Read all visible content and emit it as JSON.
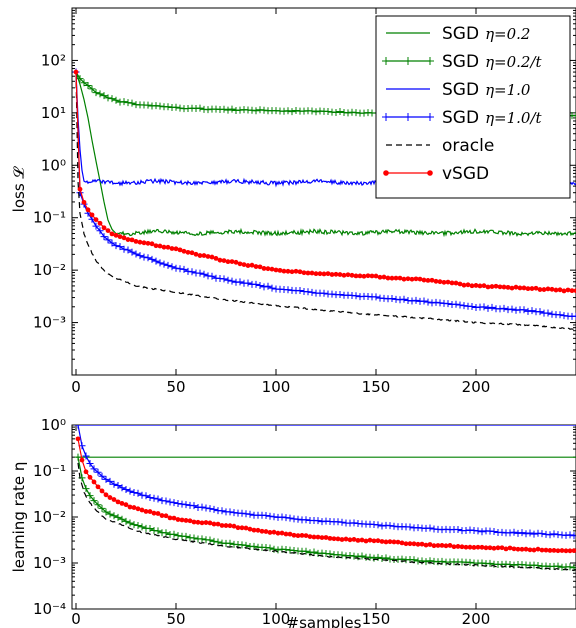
{
  "chart_data": [
    {
      "type": "line",
      "ylabel": "loss 𝓛",
      "ylog": true,
      "ylim": [
        0.0001,
        1000
      ],
      "xlim": [
        -2,
        250
      ],
      "xticks": [
        0,
        50,
        100,
        150,
        200
      ],
      "yticks": [
        {
          "value": 0.001,
          "label": "10⁻³"
        },
        {
          "value": 0.01,
          "label": "10⁻²"
        },
        {
          "value": 0.1,
          "label": "10⁻¹"
        },
        {
          "value": 1,
          "label": "10⁰"
        },
        {
          "value": 10,
          "label": "10¹"
        },
        {
          "value": 100,
          "label": "10²"
        }
      ],
      "legend": "top-right",
      "series": [
        {
          "name": "SGD η=0.2",
          "legend_prefix": "SGD",
          "legend_symbol": "η=0.2",
          "color": "#008000",
          "style": "solid",
          "marker": "none",
          "x": [
            0,
            2,
            4,
            6,
            8,
            10,
            12,
            14,
            16,
            18,
            20,
            25,
            30,
            40,
            60,
            80,
            100,
            120,
            140,
            160,
            180,
            200,
            220,
            240,
            250
          ],
          "values": [
            60,
            35,
            18,
            8,
            3,
            1.2,
            0.5,
            0.2,
            0.09,
            0.06,
            0.05,
            0.05,
            0.05,
            0.055,
            0.05,
            0.055,
            0.05,
            0.055,
            0.05,
            0.055,
            0.05,
            0.055,
            0.05,
            0.05,
            0.05
          ]
        },
        {
          "name": "SGD η=0.2/t",
          "legend_prefix": "SGD",
          "legend_symbol": "η=0.2/t",
          "color": "#008000",
          "style": "solid",
          "marker": "plus",
          "x": [
            0,
            2,
            5,
            10,
            15,
            20,
            30,
            40,
            50,
            75,
            100,
            125,
            150,
            175,
            200,
            225,
            250
          ],
          "values": [
            60,
            45,
            35,
            25,
            20,
            17,
            14.5,
            13.5,
            12.5,
            11.5,
            11,
            10.5,
            10,
            9.8,
            9.5,
            9.3,
            9
          ]
        },
        {
          "name": "SGD η=1.0",
          "legend_prefix": "SGD",
          "legend_symbol": "η=1.0",
          "color": "#0000ff",
          "style": "solid",
          "marker": "none",
          "x": [
            0,
            1,
            2,
            3,
            4,
            6,
            10,
            20,
            40,
            60,
            80,
            100,
            120,
            140,
            160,
            180,
            200,
            220,
            240,
            250
          ],
          "values": [
            60,
            8,
            2,
            0.8,
            0.5,
            0.45,
            0.5,
            0.45,
            0.5,
            0.45,
            0.5,
            0.45,
            0.5,
            0.45,
            0.5,
            0.45,
            0.5,
            0.45,
            0.5,
            0.45
          ]
        },
        {
          "name": "SGD η=1.0/t",
          "legend_prefix": "SGD",
          "legend_symbol": "η=1.0/t",
          "color": "#0000ff",
          "style": "solid",
          "marker": "plus",
          "x": [
            0,
            1,
            2,
            4,
            6,
            10,
            15,
            20,
            30,
            40,
            50,
            75,
            100,
            125,
            150,
            175,
            200,
            225,
            250
          ],
          "values": [
            60,
            1.5,
            0.3,
            0.18,
            0.12,
            0.07,
            0.04,
            0.03,
            0.02,
            0.015,
            0.011,
            0.0065,
            0.0045,
            0.0035,
            0.003,
            0.0025,
            0.002,
            0.0017,
            0.0013
          ]
        },
        {
          "name": "oracle",
          "legend_prefix": "oracle",
          "legend_symbol": "",
          "color": "#000000",
          "style": "dashed",
          "marker": "none",
          "x": [
            0,
            1,
            2,
            4,
            6,
            10,
            15,
            20,
            30,
            40,
            50,
            75,
            100,
            125,
            150,
            175,
            200,
            225,
            250
          ],
          "values": [
            60,
            0.5,
            0.12,
            0.05,
            0.03,
            0.015,
            0.009,
            0.007,
            0.005,
            0.0043,
            0.0038,
            0.0027,
            0.0021,
            0.0017,
            0.0014,
            0.0012,
            0.001,
            0.0009,
            0.00075
          ]
        },
        {
          "name": "vSGD",
          "legend_prefix": "vSGD",
          "legend_symbol": "",
          "color": "#ff0000",
          "style": "solid",
          "marker": "dot",
          "x": [
            0,
            1,
            2,
            4,
            6,
            10,
            15,
            20,
            30,
            40,
            50,
            75,
            100,
            125,
            150,
            175,
            200,
            225,
            250
          ],
          "values": [
            60,
            2,
            0.35,
            0.2,
            0.14,
            0.09,
            0.06,
            0.045,
            0.035,
            0.03,
            0.025,
            0.015,
            0.01,
            0.0085,
            0.0075,
            0.0065,
            0.005,
            0.0045,
            0.004
          ]
        }
      ]
    },
    {
      "type": "line",
      "xlabel": "#samples",
      "ylabel": "learning rate η",
      "ylog": true,
      "ylim": [
        0.0001,
        1
      ],
      "xlim": [
        -2,
        250
      ],
      "xticks": [
        0,
        50,
        100,
        150,
        200
      ],
      "yticks": [
        {
          "value": 0.0001,
          "label": "10⁻⁴"
        },
        {
          "value": 0.001,
          "label": "10⁻³"
        },
        {
          "value": 0.01,
          "label": "10⁻²"
        },
        {
          "value": 0.1,
          "label": "10⁻¹"
        },
        {
          "value": 1,
          "label": "10⁰"
        }
      ],
      "series": [
        {
          "color": "#008000",
          "style": "solid",
          "marker": "none",
          "x": [
            0,
            250
          ],
          "values": [
            0.2,
            0.2
          ]
        },
        {
          "color": "#008000",
          "style": "solid",
          "marker": "plus",
          "x": [
            1,
            2,
            4,
            6,
            10,
            15,
            20,
            30,
            40,
            50,
            75,
            100,
            125,
            150,
            175,
            200,
            225,
            250
          ],
          "values": [
            0.2,
            0.1,
            0.05,
            0.033,
            0.02,
            0.013,
            0.01,
            0.0067,
            0.005,
            0.004,
            0.0027,
            0.002,
            0.0016,
            0.0013,
            0.0011,
            0.001,
            0.0009,
            0.0008
          ]
        },
        {
          "color": "#0000ff",
          "style": "solid",
          "marker": "none",
          "x": [
            0,
            250
          ],
          "values": [
            1,
            1
          ]
        },
        {
          "color": "#0000ff",
          "style": "solid",
          "marker": "plus",
          "x": [
            1,
            2,
            4,
            6,
            10,
            15,
            20,
            30,
            40,
            50,
            75,
            100,
            125,
            150,
            175,
            200,
            225,
            250
          ],
          "values": [
            1,
            0.5,
            0.25,
            0.17,
            0.1,
            0.067,
            0.05,
            0.033,
            0.025,
            0.02,
            0.013,
            0.01,
            0.008,
            0.0067,
            0.0057,
            0.005,
            0.0044,
            0.004
          ]
        },
        {
          "color": "#000000",
          "style": "dashed",
          "marker": "none",
          "x": [
            1,
            2,
            4,
            6,
            10,
            15,
            20,
            30,
            40,
            50,
            75,
            100,
            125,
            150,
            175,
            200,
            225,
            250
          ],
          "values": [
            0.15,
            0.07,
            0.035,
            0.023,
            0.014,
            0.009,
            0.0075,
            0.005,
            0.004,
            0.0033,
            0.0023,
            0.0018,
            0.0014,
            0.0012,
            0.001,
            0.0009,
            0.0008,
            0.0007
          ]
        },
        {
          "color": "#ff0000",
          "style": "solid",
          "marker": "dot",
          "x": [
            1,
            2,
            4,
            6,
            10,
            15,
            20,
            30,
            40,
            50,
            75,
            100,
            125,
            150,
            175,
            200,
            225,
            250
          ],
          "values": [
            0.5,
            0.25,
            0.12,
            0.08,
            0.05,
            0.03,
            0.022,
            0.015,
            0.012,
            0.009,
            0.0065,
            0.0045,
            0.0035,
            0.003,
            0.0025,
            0.0022,
            0.002,
            0.0018
          ]
        }
      ]
    }
  ]
}
